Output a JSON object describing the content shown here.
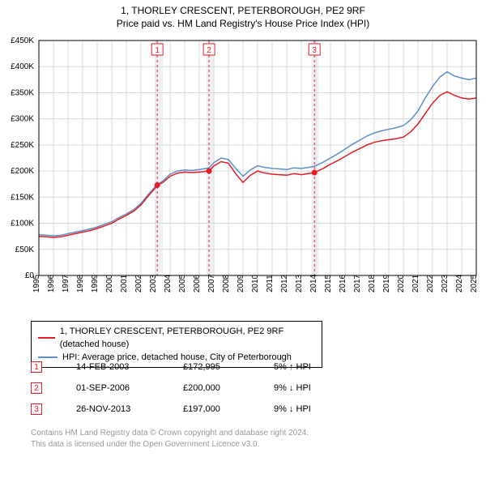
{
  "title": "1, THORLEY CRESCENT, PETERBOROUGH, PE2 9RF",
  "subtitle": "Price paid vs. HM Land Registry's House Price Index (HPI)",
  "chart": {
    "type": "line",
    "ylim": [
      0,
      450000
    ],
    "ytick_step": 50000,
    "ytick_labels": [
      "£0",
      "£50K",
      "£100K",
      "£150K",
      "£200K",
      "£250K",
      "£300K",
      "£350K",
      "£400K",
      "£450K"
    ],
    "xlim": [
      1995,
      2025
    ],
    "xticks": [
      1995,
      1996,
      1997,
      1998,
      1999,
      2000,
      2001,
      2002,
      2003,
      2004,
      2005,
      2006,
      2007,
      2008,
      2009,
      2010,
      2011,
      2012,
      2013,
      2014,
      2015,
      2016,
      2017,
      2018,
      2019,
      2020,
      2021,
      2022,
      2023,
      2024,
      2025
    ],
    "background_bands": [
      {
        "start": 2003.0,
        "end": 2003.5,
        "color": "#eef2f8"
      },
      {
        "start": 2006.5,
        "end": 2007.0,
        "color": "#eef2f8"
      },
      {
        "start": 2013.7,
        "end": 2014.2,
        "color": "#eef2f8"
      }
    ],
    "background_color": "#ffffff",
    "grid_color": "#d9d9d9",
    "series": [
      {
        "name": "price_paid",
        "label": "1, THORLEY CRESCENT, PETERBOROUGH, PE2 9RF (detached house)",
        "color": "#e51c23",
        "width": 1.5,
        "data": [
          [
            1995,
            75000
          ],
          [
            1995.5,
            74000
          ],
          [
            1996,
            73000
          ],
          [
            1996.5,
            74000
          ],
          [
            1997,
            77000
          ],
          [
            1997.5,
            80000
          ],
          [
            1998,
            83000
          ],
          [
            1998.5,
            86000
          ],
          [
            1999,
            90000
          ],
          [
            1999.5,
            95000
          ],
          [
            2000,
            100000
          ],
          [
            2000.5,
            108000
          ],
          [
            2001,
            115000
          ],
          [
            2001.5,
            123000
          ],
          [
            2002,
            135000
          ],
          [
            2002.5,
            152000
          ],
          [
            2003,
            168000
          ],
          [
            2003.12,
            172995
          ],
          [
            2003.5,
            178000
          ],
          [
            2004,
            190000
          ],
          [
            2004.5,
            196000
          ],
          [
            2005,
            198000
          ],
          [
            2005.5,
            197000
          ],
          [
            2006,
            198000
          ],
          [
            2006.67,
            200000
          ],
          [
            2007,
            210000
          ],
          [
            2007.5,
            218000
          ],
          [
            2008,
            215000
          ],
          [
            2008.5,
            195000
          ],
          [
            2009,
            178000
          ],
          [
            2009.5,
            192000
          ],
          [
            2010,
            200000
          ],
          [
            2010.5,
            196000
          ],
          [
            2011,
            194000
          ],
          [
            2011.5,
            193000
          ],
          [
            2012,
            192000
          ],
          [
            2012.5,
            195000
          ],
          [
            2013,
            193000
          ],
          [
            2013.5,
            195000
          ],
          [
            2013.9,
            197000
          ],
          [
            2014.5,
            205000
          ],
          [
            2015,
            213000
          ],
          [
            2015.5,
            220000
          ],
          [
            2016,
            228000
          ],
          [
            2016.5,
            236000
          ],
          [
            2017,
            243000
          ],
          [
            2017.5,
            250000
          ],
          [
            2018,
            255000
          ],
          [
            2018.5,
            258000
          ],
          [
            2019,
            260000
          ],
          [
            2019.5,
            262000
          ],
          [
            2020,
            265000
          ],
          [
            2020.5,
            275000
          ],
          [
            2021,
            290000
          ],
          [
            2021.5,
            310000
          ],
          [
            2022,
            330000
          ],
          [
            2022.5,
            345000
          ],
          [
            2023,
            352000
          ],
          [
            2023.5,
            345000
          ],
          [
            2024,
            340000
          ],
          [
            2024.5,
            338000
          ],
          [
            2025,
            340000
          ]
        ]
      },
      {
        "name": "hpi",
        "label": "HPI: Average price, detached house, City of Peterborough",
        "color": "#5b8fc7",
        "width": 1.5,
        "data": [
          [
            1995,
            78000
          ],
          [
            1995.5,
            77000
          ],
          [
            1996,
            76000
          ],
          [
            1996.5,
            77000
          ],
          [
            1997,
            80000
          ],
          [
            1997.5,
            83000
          ],
          [
            1998,
            86000
          ],
          [
            1998.5,
            89000
          ],
          [
            1999,
            93000
          ],
          [
            1999.5,
            98000
          ],
          [
            2000,
            103000
          ],
          [
            2000.5,
            111000
          ],
          [
            2001,
            118000
          ],
          [
            2001.5,
            126000
          ],
          [
            2002,
            138000
          ],
          [
            2002.5,
            155000
          ],
          [
            2003,
            171000
          ],
          [
            2003.5,
            181000
          ],
          [
            2004,
            194000
          ],
          [
            2004.5,
            200000
          ],
          [
            2005,
            202000
          ],
          [
            2005.5,
            201000
          ],
          [
            2006,
            203000
          ],
          [
            2006.67,
            206000
          ],
          [
            2007,
            216000
          ],
          [
            2007.5,
            225000
          ],
          [
            2008,
            222000
          ],
          [
            2008.5,
            205000
          ],
          [
            2009,
            190000
          ],
          [
            2009.5,
            202000
          ],
          [
            2010,
            210000
          ],
          [
            2010.5,
            207000
          ],
          [
            2011,
            205000
          ],
          [
            2011.5,
            204000
          ],
          [
            2012,
            203000
          ],
          [
            2012.5,
            206000
          ],
          [
            2013,
            205000
          ],
          [
            2013.5,
            207000
          ],
          [
            2013.9,
            209000
          ],
          [
            2014.5,
            217000
          ],
          [
            2015,
            225000
          ],
          [
            2015.5,
            233000
          ],
          [
            2016,
            242000
          ],
          [
            2016.5,
            251000
          ],
          [
            2017,
            259000
          ],
          [
            2017.5,
            267000
          ],
          [
            2018,
            273000
          ],
          [
            2018.5,
            277000
          ],
          [
            2019,
            280000
          ],
          [
            2019.5,
            283000
          ],
          [
            2020,
            287000
          ],
          [
            2020.5,
            298000
          ],
          [
            2021,
            315000
          ],
          [
            2021.5,
            340000
          ],
          [
            2022,
            362000
          ],
          [
            2022.5,
            380000
          ],
          [
            2023,
            390000
          ],
          [
            2023.5,
            382000
          ],
          [
            2024,
            378000
          ],
          [
            2024.5,
            375000
          ],
          [
            2025,
            378000
          ]
        ]
      }
    ],
    "markers": [
      {
        "id": "1",
        "x": 2003.12,
        "y": 172995,
        "line_color": "#e51c23"
      },
      {
        "id": "2",
        "x": 2006.67,
        "y": 200000,
        "line_color": "#e51c23"
      },
      {
        "id": "3",
        "x": 2013.9,
        "y": 197000,
        "line_color": "#e51c23"
      }
    ]
  },
  "legend": {
    "items": [
      {
        "color": "#e51c23",
        "label": "1, THORLEY CRESCENT, PETERBOROUGH, PE2 9RF (detached house)"
      },
      {
        "color": "#5b8fc7",
        "label": "HPI: Average price, detached house, City of Peterborough"
      }
    ]
  },
  "annotations": [
    {
      "id": "1",
      "date": "14-FEB-2003",
      "price": "£172,995",
      "diff": "5% ↑ HPI"
    },
    {
      "id": "2",
      "date": "01-SEP-2006",
      "price": "£200,000",
      "diff": "9% ↓ HPI"
    },
    {
      "id": "3",
      "date": "26-NOV-2013",
      "price": "£197,000",
      "diff": "9% ↓ HPI"
    }
  ],
  "footer": {
    "line1": "Contains HM Land Registry data © Crown copyright and database right 2024.",
    "line2": "This data is licensed under the Open Government Licence v3.0."
  }
}
